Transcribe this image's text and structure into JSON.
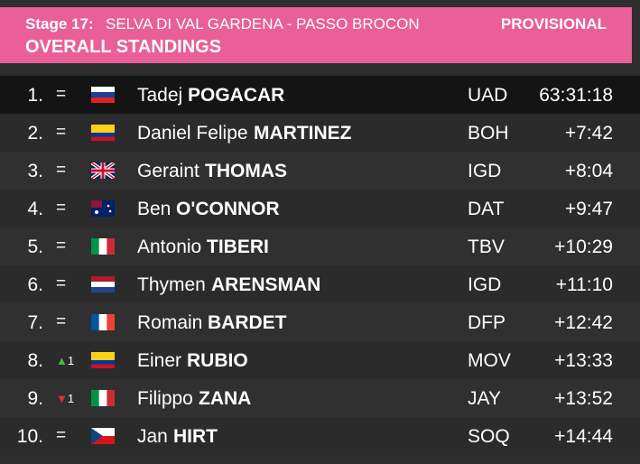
{
  "header": {
    "stage": "Stage 17:",
    "route": "SELVA DI VAL GARDENA - PASSO BROCON",
    "status": "PROVISIONAL",
    "title": "OVERALL STANDINGS"
  },
  "table": {
    "rows": [
      [
        "1.",
        "=",
        "Tadej",
        "POGACAR",
        "UAD",
        "63:31:18"
      ],
      [
        "2.",
        "=",
        "Daniel Felipe",
        "MARTINEZ",
        "BOH",
        "+7:42"
      ],
      [
        "3.",
        "=",
        "Geraint",
        "THOMAS",
        "IGD",
        "+8:04"
      ],
      [
        "4.",
        "=",
        "Ben",
        "O'CONNOR",
        "DAT",
        "+9:47"
      ],
      [
        "5.",
        "=",
        "Antonio",
        "TIBERI",
        "TBV",
        "+10:29"
      ],
      [
        "6.",
        "=",
        "Thymen",
        "ARENSMAN",
        "IGD",
        "+11:10"
      ],
      [
        "7.",
        "=",
        "Romain",
        "BARDET",
        "DFP",
        "+12:42"
      ],
      [
        "8.",
        "▲1",
        "Einer",
        "RUBIO",
        "MOV",
        "+13:33"
      ],
      [
        "9.",
        "▼1",
        "Filippo",
        "ZANA",
        "JAY",
        "+13:52"
      ],
      [
        "10.",
        "=",
        "Jan",
        "HIRT",
        "SOQ",
        "+14:44"
      ]
    ]
  }
}
